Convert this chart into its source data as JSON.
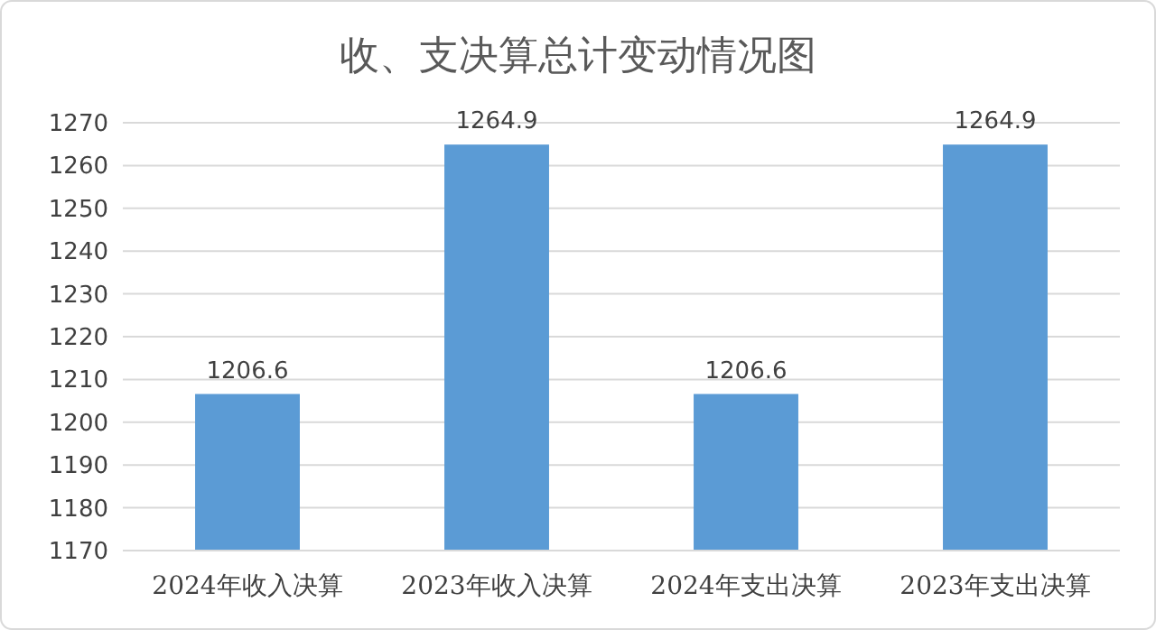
{
  "chart_data": {
    "type": "bar",
    "title": "收、支决算总计变动情况图",
    "categories": [
      "2024年收入决算",
      "2023年收入决算",
      "2024年支出决算",
      "2023年支出决算"
    ],
    "values": [
      1206.6,
      1264.9,
      1206.6,
      1264.9
    ],
    "color": "#5b9bd5",
    "ylim": [
      1170,
      1270
    ],
    "yticks": [
      1170,
      1180,
      1190,
      1200,
      1210,
      1220,
      1230,
      1240,
      1250,
      1260,
      1270
    ],
    "grid": "y",
    "data_labels": true
  }
}
